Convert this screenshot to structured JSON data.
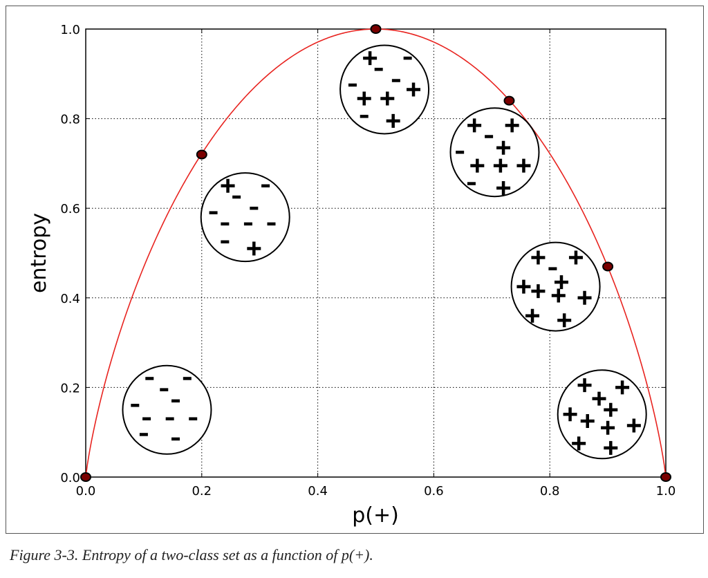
{
  "caption": "Figure 3-3. Entropy of a two-class set as a function of p(+).",
  "chart_data": {
    "type": "line",
    "xlabel": "p(+)",
    "ylabel": "entropy",
    "xlim": [
      0.0,
      1.0
    ],
    "ylim": [
      0.0,
      1.0
    ],
    "xticks": [
      "0.0",
      "0.2",
      "0.4",
      "0.6",
      "0.8",
      "1.0"
    ],
    "yticks": [
      "0.0",
      "0.2",
      "0.4",
      "0.6",
      "0.8",
      "1.0"
    ],
    "grid": true,
    "colors": {
      "curve": "#e8231f",
      "point": "#000000",
      "point_fill": "#7a0000"
    },
    "series": [
      {
        "function": "binary entropy",
        "marked_points": [
          {
            "x": 0.0,
            "y": 0.0
          },
          {
            "x": 0.2,
            "y": 0.72
          },
          {
            "x": 0.5,
            "y": 1.0
          },
          {
            "x": 0.73,
            "y": 0.84
          },
          {
            "x": 0.9,
            "y": 0.47
          },
          {
            "x": 1.0,
            "y": 0.0
          }
        ]
      }
    ],
    "annotations": [
      {
        "label": "set with p(+)=0",
        "cx": 0.14,
        "cy": 0.15,
        "symbols": [
          {
            "s": "-",
            "x": 0.11,
            "y": 0.22
          },
          {
            "s": "-",
            "x": 0.175,
            "y": 0.22
          },
          {
            "s": "-",
            "x": 0.135,
            "y": 0.195
          },
          {
            "s": "-",
            "x": 0.155,
            "y": 0.17
          },
          {
            "s": "-",
            "x": 0.085,
            "y": 0.16
          },
          {
            "s": "-",
            "x": 0.105,
            "y": 0.13
          },
          {
            "s": "-",
            "x": 0.145,
            "y": 0.13
          },
          {
            "s": "-",
            "x": 0.185,
            "y": 0.13
          },
          {
            "s": "-",
            "x": 0.1,
            "y": 0.095
          },
          {
            "s": "-",
            "x": 0.155,
            "y": 0.085
          }
        ]
      },
      {
        "label": "set with p(+)=0.2",
        "cx": 0.275,
        "cy": 0.58,
        "symbols": [
          {
            "s": "+",
            "x": 0.245,
            "y": 0.65
          },
          {
            "s": "-",
            "x": 0.31,
            "y": 0.65
          },
          {
            "s": "-",
            "x": 0.26,
            "y": 0.625
          },
          {
            "s": "-",
            "x": 0.29,
            "y": 0.6
          },
          {
            "s": "-",
            "x": 0.22,
            "y": 0.59
          },
          {
            "s": "-",
            "x": 0.24,
            "y": 0.565
          },
          {
            "s": "-",
            "x": 0.28,
            "y": 0.565
          },
          {
            "s": "-",
            "x": 0.32,
            "y": 0.565
          },
          {
            "s": "-",
            "x": 0.24,
            "y": 0.525
          },
          {
            "s": "+",
            "x": 0.29,
            "y": 0.51
          }
        ]
      },
      {
        "label": "set with p(+)=0.5",
        "cx": 0.515,
        "cy": 0.865,
        "symbols": [
          {
            "s": "+",
            "x": 0.49,
            "y": 0.935
          },
          {
            "s": "-",
            "x": 0.555,
            "y": 0.935
          },
          {
            "s": "-",
            "x": 0.505,
            "y": 0.91
          },
          {
            "s": "-",
            "x": 0.535,
            "y": 0.885
          },
          {
            "s": "-",
            "x": 0.46,
            "y": 0.875
          },
          {
            "s": "+",
            "x": 0.565,
            "y": 0.865
          },
          {
            "s": "+",
            "x": 0.48,
            "y": 0.845
          },
          {
            "s": "+",
            "x": 0.52,
            "y": 0.845
          },
          {
            "s": "-",
            "x": 0.48,
            "y": 0.805
          },
          {
            "s": "+",
            "x": 0.53,
            "y": 0.795
          }
        ]
      },
      {
        "label": "set with p(+)=0.7",
        "cx": 0.705,
        "cy": 0.725,
        "symbols": [
          {
            "s": "+",
            "x": 0.67,
            "y": 0.785
          },
          {
            "s": "+",
            "x": 0.735,
            "y": 0.785
          },
          {
            "s": "-",
            "x": 0.695,
            "y": 0.76
          },
          {
            "s": "+",
            "x": 0.72,
            "y": 0.735
          },
          {
            "s": "-",
            "x": 0.645,
            "y": 0.725
          },
          {
            "s": "+",
            "x": 0.675,
            "y": 0.695
          },
          {
            "s": "+",
            "x": 0.715,
            "y": 0.695
          },
          {
            "s": "+",
            "x": 0.755,
            "y": 0.695
          },
          {
            "s": "-",
            "x": 0.665,
            "y": 0.655
          },
          {
            "s": "+",
            "x": 0.72,
            "y": 0.645
          }
        ]
      },
      {
        "label": "set with p(+)=0.9",
        "cx": 0.81,
        "cy": 0.425,
        "symbols": [
          {
            "s": "+",
            "x": 0.78,
            "y": 0.49
          },
          {
            "s": "+",
            "x": 0.845,
            "y": 0.49
          },
          {
            "s": "-",
            "x": 0.805,
            "y": 0.465
          },
          {
            "s": "+",
            "x": 0.82,
            "y": 0.435
          },
          {
            "s": "+",
            "x": 0.755,
            "y": 0.425
          },
          {
            "s": "+",
            "x": 0.78,
            "y": 0.415
          },
          {
            "s": "+",
            "x": 0.815,
            "y": 0.405
          },
          {
            "s": "+",
            "x": 0.86,
            "y": 0.4
          },
          {
            "s": "+",
            "x": 0.77,
            "y": 0.36
          },
          {
            "s": "+",
            "x": 0.825,
            "y": 0.35
          }
        ]
      },
      {
        "label": "set with p(+)=1",
        "cx": 0.89,
        "cy": 0.14,
        "symbols": [
          {
            "s": "+",
            "x": 0.86,
            "y": 0.205
          },
          {
            "s": "+",
            "x": 0.925,
            "y": 0.2
          },
          {
            "s": "+",
            "x": 0.885,
            "y": 0.175
          },
          {
            "s": "+",
            "x": 0.905,
            "y": 0.15
          },
          {
            "s": "+",
            "x": 0.835,
            "y": 0.14
          },
          {
            "s": "+",
            "x": 0.865,
            "y": 0.125
          },
          {
            "s": "+",
            "x": 0.9,
            "y": 0.11
          },
          {
            "s": "+",
            "x": 0.945,
            "y": 0.115
          },
          {
            "s": "+",
            "x": 0.85,
            "y": 0.075
          },
          {
            "s": "+",
            "x": 0.905,
            "y": 0.065
          }
        ]
      }
    ]
  }
}
